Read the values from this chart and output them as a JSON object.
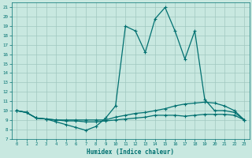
{
  "xlabel": "Humidex (Indice chaleur)",
  "bg_color": "#c8e8e0",
  "grid_color": "#a0c8c0",
  "line_color": "#007070",
  "xlim_min": -0.5,
  "xlim_max": 23.5,
  "ylim_min": 7,
  "ylim_max": 21.5,
  "xticks": [
    0,
    1,
    2,
    3,
    4,
    5,
    6,
    7,
    8,
    9,
    10,
    11,
    12,
    13,
    14,
    15,
    16,
    17,
    18,
    19,
    20,
    21,
    22,
    23
  ],
  "yticks": [
    7,
    8,
    9,
    10,
    11,
    12,
    13,
    14,
    15,
    16,
    17,
    18,
    19,
    20,
    21
  ],
  "line1_x": [
    0,
    1,
    2,
    3,
    4,
    5,
    6,
    7,
    8,
    9,
    10,
    11,
    12,
    13,
    14,
    15,
    16,
    17,
    18,
    19,
    20,
    21,
    22,
    23
  ],
  "line1_y": [
    10.0,
    9.8,
    9.2,
    9.1,
    8.8,
    8.5,
    8.2,
    7.9,
    8.3,
    9.2,
    10.5,
    19.0,
    18.5,
    16.2,
    19.8,
    21.0,
    18.5,
    15.5,
    18.5,
    11.2,
    10.0,
    10.0,
    9.8,
    9.0
  ],
  "line2_x": [
    0,
    1,
    2,
    3,
    4,
    5,
    6,
    7,
    8,
    9,
    10,
    11,
    12,
    13,
    14,
    15,
    16,
    17,
    18,
    19,
    20,
    21,
    22,
    23
  ],
  "line2_y": [
    10.0,
    9.8,
    9.2,
    9.1,
    9.0,
    9.0,
    9.0,
    9.0,
    9.0,
    9.0,
    9.3,
    9.5,
    9.7,
    9.8,
    10.0,
    10.2,
    10.5,
    10.7,
    10.8,
    10.9,
    10.8,
    10.5,
    10.0,
    9.0
  ],
  "line3_x": [
    0,
    1,
    2,
    3,
    4,
    5,
    6,
    7,
    8,
    9,
    10,
    11,
    12,
    13,
    14,
    15,
    16,
    17,
    18,
    19,
    20,
    21,
    22,
    23
  ],
  "line3_y": [
    10.0,
    9.8,
    9.2,
    9.1,
    9.0,
    8.9,
    8.9,
    8.8,
    8.8,
    8.9,
    9.0,
    9.1,
    9.2,
    9.3,
    9.5,
    9.5,
    9.5,
    9.4,
    9.5,
    9.6,
    9.6,
    9.6,
    9.5,
    9.0
  ]
}
